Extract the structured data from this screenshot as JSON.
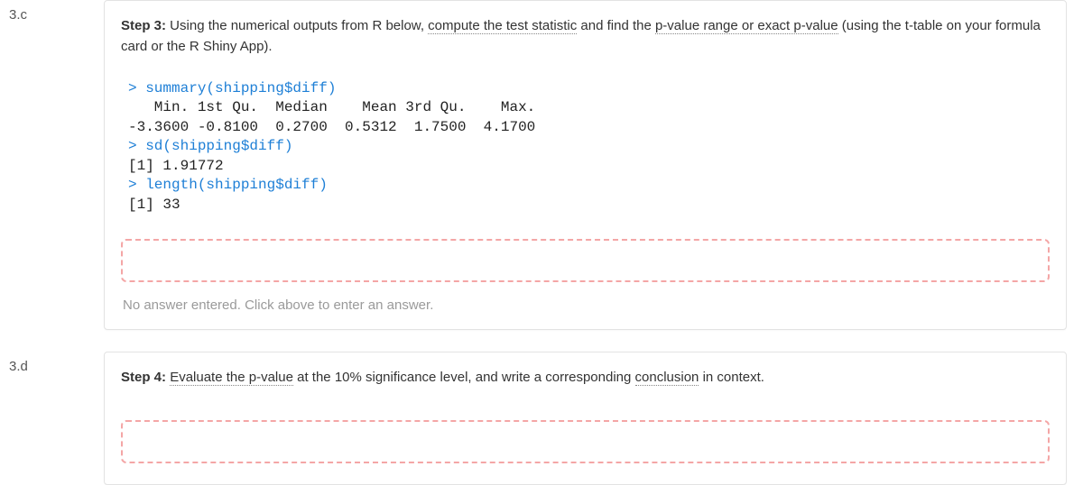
{
  "q1": {
    "number": "3.c",
    "step_label": "Step 3:",
    "text_before_u1": " Using the numerical outputs from R below, ",
    "u1": "compute the test statistic",
    "text_mid1": " and find the ",
    "u2": "p-value range or exact p-value",
    "text_after": " (using the t-table on your formula card or the R Shiny App).",
    "code": [
      {
        "p": "> ",
        "c": "summary(shipping$diff)"
      },
      {
        "p": "",
        "c": "   Min. 1st Qu.  Median    Mean 3rd Qu.    Max."
      },
      {
        "p": "",
        "c": "-3.3600 -0.8100  0.2700  0.5312  1.7500  4.1700"
      },
      {
        "p": "> ",
        "c": "sd(shipping$diff)"
      },
      {
        "p": "",
        "c": "[1] 1.91772"
      },
      {
        "p": "> ",
        "c": "length(shipping$diff)"
      },
      {
        "p": "",
        "c": "[1] 33"
      }
    ],
    "answer_value": "",
    "no_answer": "No answer entered. Click above to enter an answer."
  },
  "q2": {
    "number": "3.d",
    "step_label": "Step 4:",
    "text_before_u1": " ",
    "u1": "Evaluate the p-value",
    "text_mid1": " at the 10% significance level, and write a corresponding ",
    "u2": "conclusion",
    "text_after": " in context.",
    "answer_value": ""
  },
  "colors": {
    "prompt_blue": "#1e7fd6",
    "dashed_border": "#f4a6a6",
    "muted": "#9a9a9a",
    "card_border": "#e3e3e3"
  }
}
